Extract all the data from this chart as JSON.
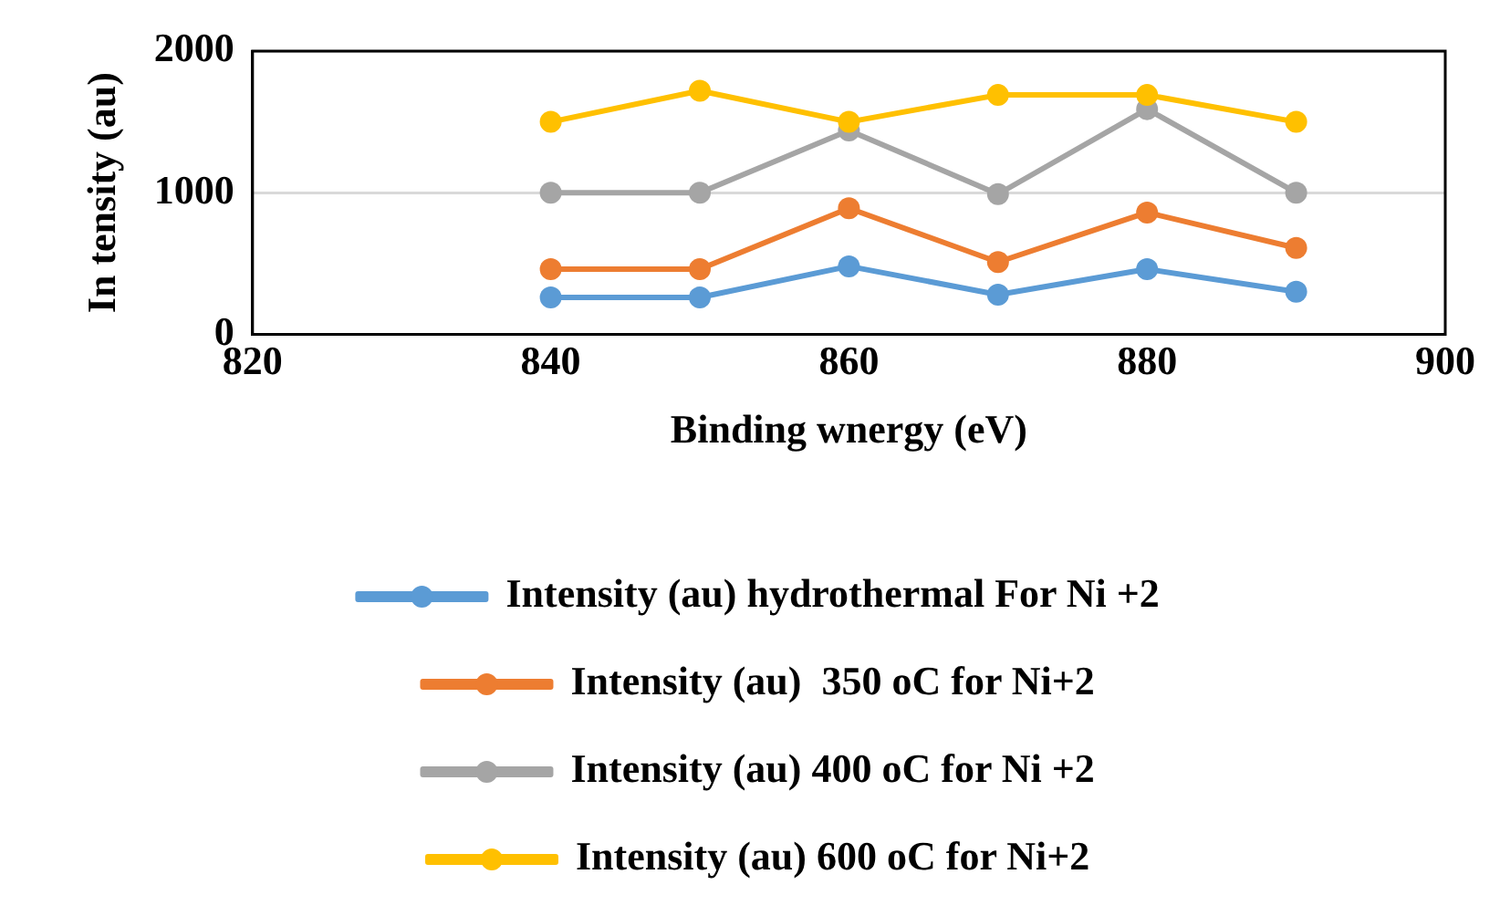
{
  "chart_data": {
    "type": "line",
    "xlabel": "Binding wnergy (eV)",
    "ylabel": "In tensity (au)",
    "x": [
      840,
      850,
      860,
      870,
      880,
      890
    ],
    "series": [
      {
        "name": "Intensity (au) hydrothermal For Ni +2",
        "color": "#5b9bd5",
        "values": [
          260,
          260,
          480,
          280,
          460,
          300
        ]
      },
      {
        "name": "Intensity (au)  350 oC for Ni+2",
        "color": "#ed7d31",
        "values": [
          460,
          460,
          890,
          510,
          860,
          610
        ]
      },
      {
        "name": "Intensity (au) 400 oC for Ni +2",
        "color": "#a5a5a5",
        "values": [
          1000,
          1000,
          1440,
          990,
          1590,
          1000
        ]
      },
      {
        "name": "Intensity (au) 600 oC for Ni+2",
        "color": "#ffc000",
        "values": [
          1500,
          1720,
          1500,
          1690,
          1690,
          1500
        ]
      }
    ],
    "xlim": [
      820,
      900
    ],
    "xticks": [
      820,
      840,
      860,
      880,
      900
    ],
    "ylim": [
      0,
      2000
    ],
    "yticks": [
      0,
      1000,
      2000
    ],
    "grid": "y",
    "legend": "bottom",
    "marker": "circle",
    "line_style": "solid"
  }
}
